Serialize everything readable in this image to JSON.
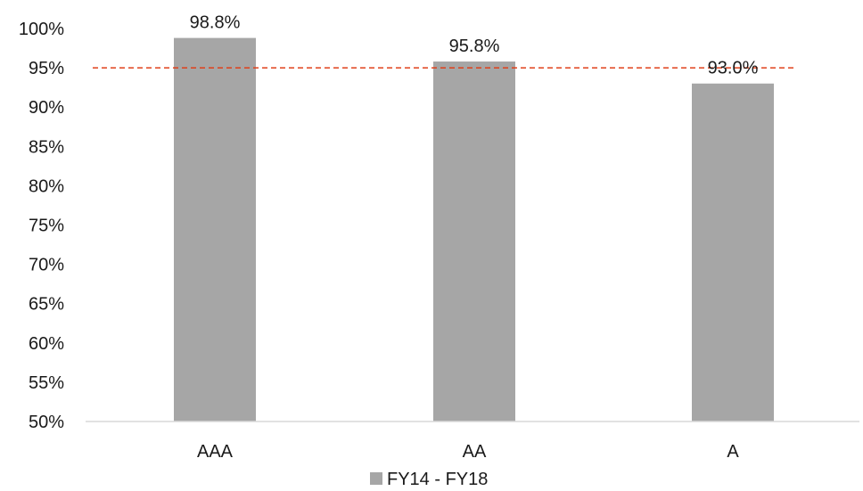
{
  "chart_data": {
    "type": "bar",
    "categories": [
      "AAA",
      "AA",
      "A"
    ],
    "series": [
      {
        "name": "FY14 - FY18",
        "values": [
          98.8,
          95.8,
          93.0
        ],
        "color": "#a6a6a6"
      }
    ],
    "data_labels": [
      "98.8%",
      "95.8%",
      "93.0%"
    ],
    "ylim": [
      50,
      100
    ],
    "y_ticks": [
      50,
      55,
      60,
      65,
      70,
      75,
      80,
      85,
      90,
      95,
      100
    ],
    "y_tick_labels": [
      "50%",
      "55%",
      "60%",
      "65%",
      "70%",
      "75%",
      "80%",
      "85%",
      "90%",
      "95%",
      "100%"
    ],
    "reference_line": {
      "value": 95,
      "style": "dashed",
      "color": "#e0401a"
    },
    "grid": false,
    "legend": {
      "position": "bottom",
      "label": "FY14 - FY18"
    },
    "title": "",
    "xlabel": "",
    "ylabel": ""
  }
}
